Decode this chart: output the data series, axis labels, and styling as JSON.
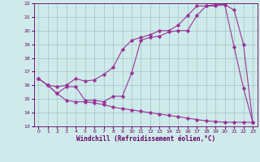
{
  "xlabel": "Windchill (Refroidissement éolien,°C)",
  "xlim": [
    -0.5,
    23.5
  ],
  "ylim": [
    13,
    22
  ],
  "xticks": [
    0,
    1,
    2,
    3,
    4,
    5,
    6,
    7,
    8,
    9,
    10,
    11,
    12,
    13,
    14,
    15,
    16,
    17,
    18,
    19,
    20,
    21,
    22,
    23
  ],
  "yticks": [
    13,
    14,
    15,
    16,
    17,
    18,
    19,
    20,
    21,
    22
  ],
  "bg_color": "#ceeaea",
  "grid_color": "#aacccc",
  "line_color": "#993399",
  "line1_x": [
    0,
    1,
    2,
    3,
    4,
    5,
    6,
    7,
    8,
    9,
    10,
    11,
    12,
    13,
    14,
    15,
    16,
    17,
    18,
    19,
    20,
    21,
    22,
    23
  ],
  "line1_y": [
    16.5,
    16.0,
    15.4,
    15.9,
    15.9,
    14.9,
    14.9,
    14.8,
    15.2,
    15.2,
    16.9,
    19.3,
    19.5,
    19.6,
    19.9,
    20.0,
    20.0,
    21.1,
    21.8,
    21.9,
    21.9,
    18.8,
    15.8,
    13.3
  ],
  "line2_x": [
    0,
    1,
    2,
    3,
    4,
    5,
    6,
    7,
    8,
    9,
    10,
    11,
    12,
    13,
    14,
    15,
    16,
    17,
    18,
    19,
    20,
    21,
    22,
    23
  ],
  "line2_y": [
    16.5,
    16.0,
    15.9,
    16.0,
    16.5,
    16.3,
    16.4,
    16.8,
    17.3,
    18.6,
    19.3,
    19.5,
    19.7,
    20.0,
    20.0,
    20.4,
    21.1,
    21.8,
    21.8,
    21.8,
    21.9,
    21.5,
    19.0,
    13.3
  ],
  "line3_x": [
    0,
    1,
    2,
    3,
    4,
    5,
    6,
    7,
    8,
    9,
    10,
    11,
    12,
    13,
    14,
    15,
    16,
    17,
    18,
    19,
    20,
    21,
    22,
    23
  ],
  "line3_y": [
    16.5,
    16.0,
    15.4,
    14.9,
    14.8,
    14.8,
    14.7,
    14.6,
    14.4,
    14.3,
    14.2,
    14.1,
    14.0,
    13.9,
    13.8,
    13.7,
    13.6,
    13.5,
    13.4,
    13.35,
    13.3,
    13.3,
    13.3,
    13.3
  ]
}
